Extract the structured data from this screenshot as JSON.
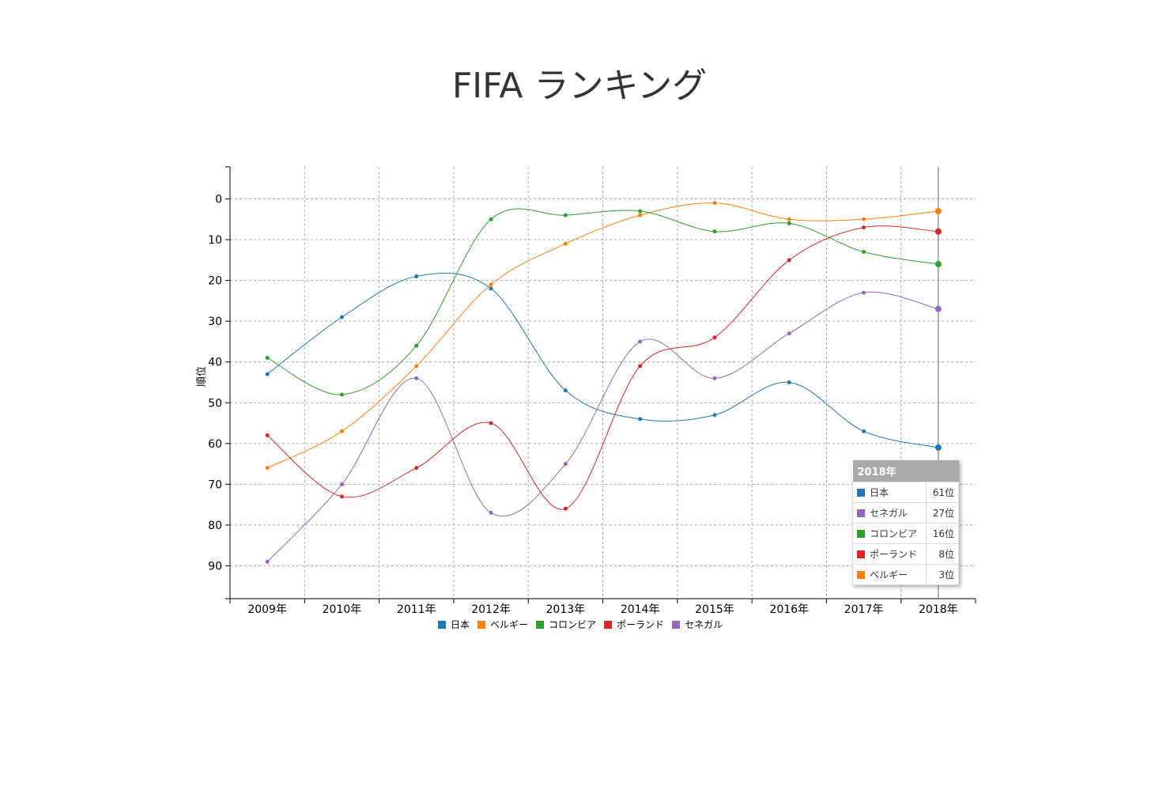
{
  "page": {
    "title": "FIFA ランキング"
  },
  "chart_data": {
    "type": "line",
    "title": "FIFA ランキング",
    "xlabel": "",
    "ylabel": "順位",
    "y_inverted": true,
    "ylim": [
      0,
      97
    ],
    "yticks": [
      0,
      10,
      20,
      30,
      40,
      50,
      60,
      70,
      80,
      90
    ],
    "grid": true,
    "legend_position": "bottom",
    "categories": [
      "2009年",
      "2010年",
      "2011年",
      "2012年",
      "2013年",
      "2014年",
      "2015年",
      "2016年",
      "2017年",
      "2018年"
    ],
    "series": [
      {
        "name": "日本",
        "color": "#1f77b4",
        "values": [
          43,
          29,
          19,
          22,
          47,
          54,
          53,
          45,
          57,
          61
        ]
      },
      {
        "name": "ベルギー",
        "color": "#ff7f0e",
        "values": [
          66,
          57,
          41,
          21,
          11,
          4,
          1,
          5,
          5,
          3
        ]
      },
      {
        "name": "コロンビア",
        "color": "#2ca02c",
        "values": [
          39,
          48,
          36,
          5,
          4,
          3,
          8,
          6,
          13,
          16
        ]
      },
      {
        "name": "ポーランド",
        "color": "#d62728",
        "values": [
          58,
          73,
          66,
          55,
          76,
          41,
          34,
          15,
          7,
          8
        ]
      },
      {
        "name": "セネガル",
        "color": "#9467bd",
        "values": [
          89,
          70,
          44,
          77,
          65,
          35,
          44,
          33,
          23,
          27
        ]
      }
    ]
  },
  "tooltip": {
    "header": "2018年",
    "rows": [
      {
        "name": "日本",
        "value": "61位",
        "color": "#1f77b4"
      },
      {
        "name": "セネガル",
        "value": "27位",
        "color": "#9467bd"
      },
      {
        "name": "コロンビア",
        "value": "16位",
        "color": "#2ca02c"
      },
      {
        "name": "ポーランド",
        "value": "8位",
        "color": "#d62728"
      },
      {
        "name": "ベルギー",
        "value": "3位",
        "color": "#ff7f0e"
      }
    ]
  }
}
